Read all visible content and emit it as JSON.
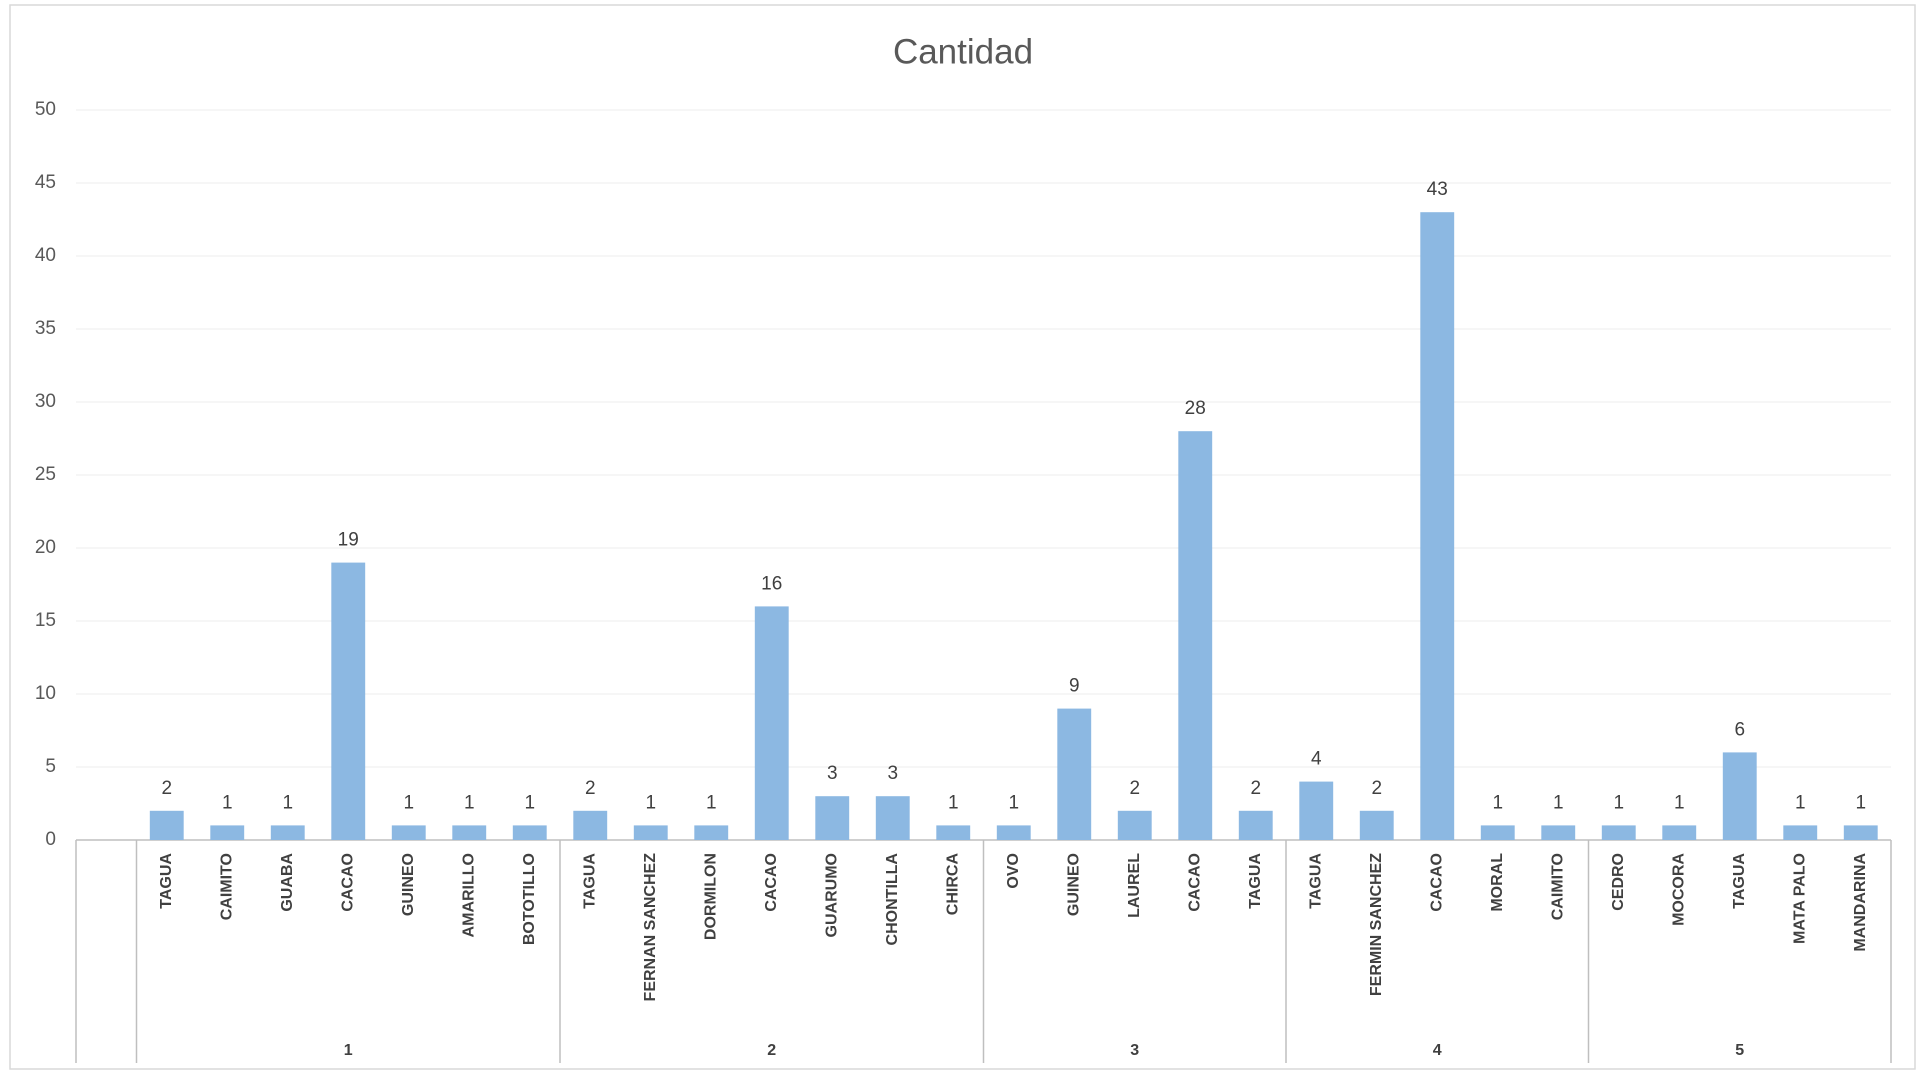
{
  "chart_data": {
    "type": "bar",
    "title": "Cantidad",
    "color": "#8cb8e2",
    "grid": true,
    "ylim": [
      0,
      50
    ],
    "yticks": [
      0,
      5,
      10,
      15,
      20,
      25,
      30,
      35,
      40,
      45,
      50
    ],
    "groups": [
      {
        "label": null,
        "categories": [
          null
        ],
        "values": [
          null
        ]
      },
      {
        "label": "1",
        "categories": [
          "TAGUA",
          "CAIMITO",
          "GUABA",
          "CACAO",
          "GUINEO",
          "AMARILLO",
          "BOTOTILLO"
        ],
        "values": [
          2,
          1,
          1,
          19,
          1,
          1,
          1
        ]
      },
      {
        "label": "2",
        "categories": [
          "TAGUA",
          "FERNAN SANCHEZ",
          "DORMILON",
          "CACAO",
          "GUARUMO",
          "CHONTILLA",
          "CHIRCA"
        ],
        "values": [
          2,
          1,
          1,
          16,
          3,
          3,
          1
        ]
      },
      {
        "label": "3",
        "categories": [
          "OVO",
          "GUINEO",
          "LAUREL",
          "CACAO",
          "TAGUA"
        ],
        "values": [
          1,
          9,
          2,
          28,
          2
        ]
      },
      {
        "label": "4",
        "categories": [
          "TAGUA",
          "FERMIN SANCHEZ",
          "CACAO",
          "MORAL",
          "CAIMITO"
        ],
        "values": [
          4,
          2,
          43,
          1,
          1
        ]
      },
      {
        "label": "5",
        "categories": [
          "CEDRO",
          "MOCORA",
          "TAGUA",
          "MATA PALO",
          "MANDARINA"
        ],
        "values": [
          1,
          1,
          6,
          1,
          1
        ]
      }
    ]
  }
}
